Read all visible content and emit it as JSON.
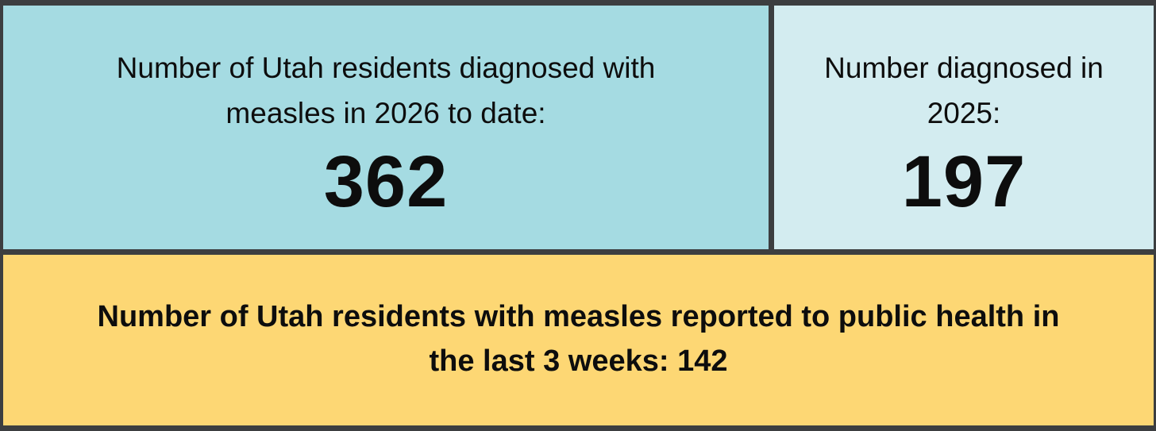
{
  "panels": {
    "year_2026": {
      "label": "Number of Utah residents diagnosed with measles in 2026 to date:",
      "value": "362",
      "color": "#a5dbe2"
    },
    "year_2025": {
      "label": "Number diagnosed in 2025:",
      "value": "197",
      "color": "#d3ecf0"
    },
    "recent": {
      "text": "Number of Utah residents with measles reported to public health in the last 3 weeks: 142",
      "color": "#fdd774"
    }
  }
}
